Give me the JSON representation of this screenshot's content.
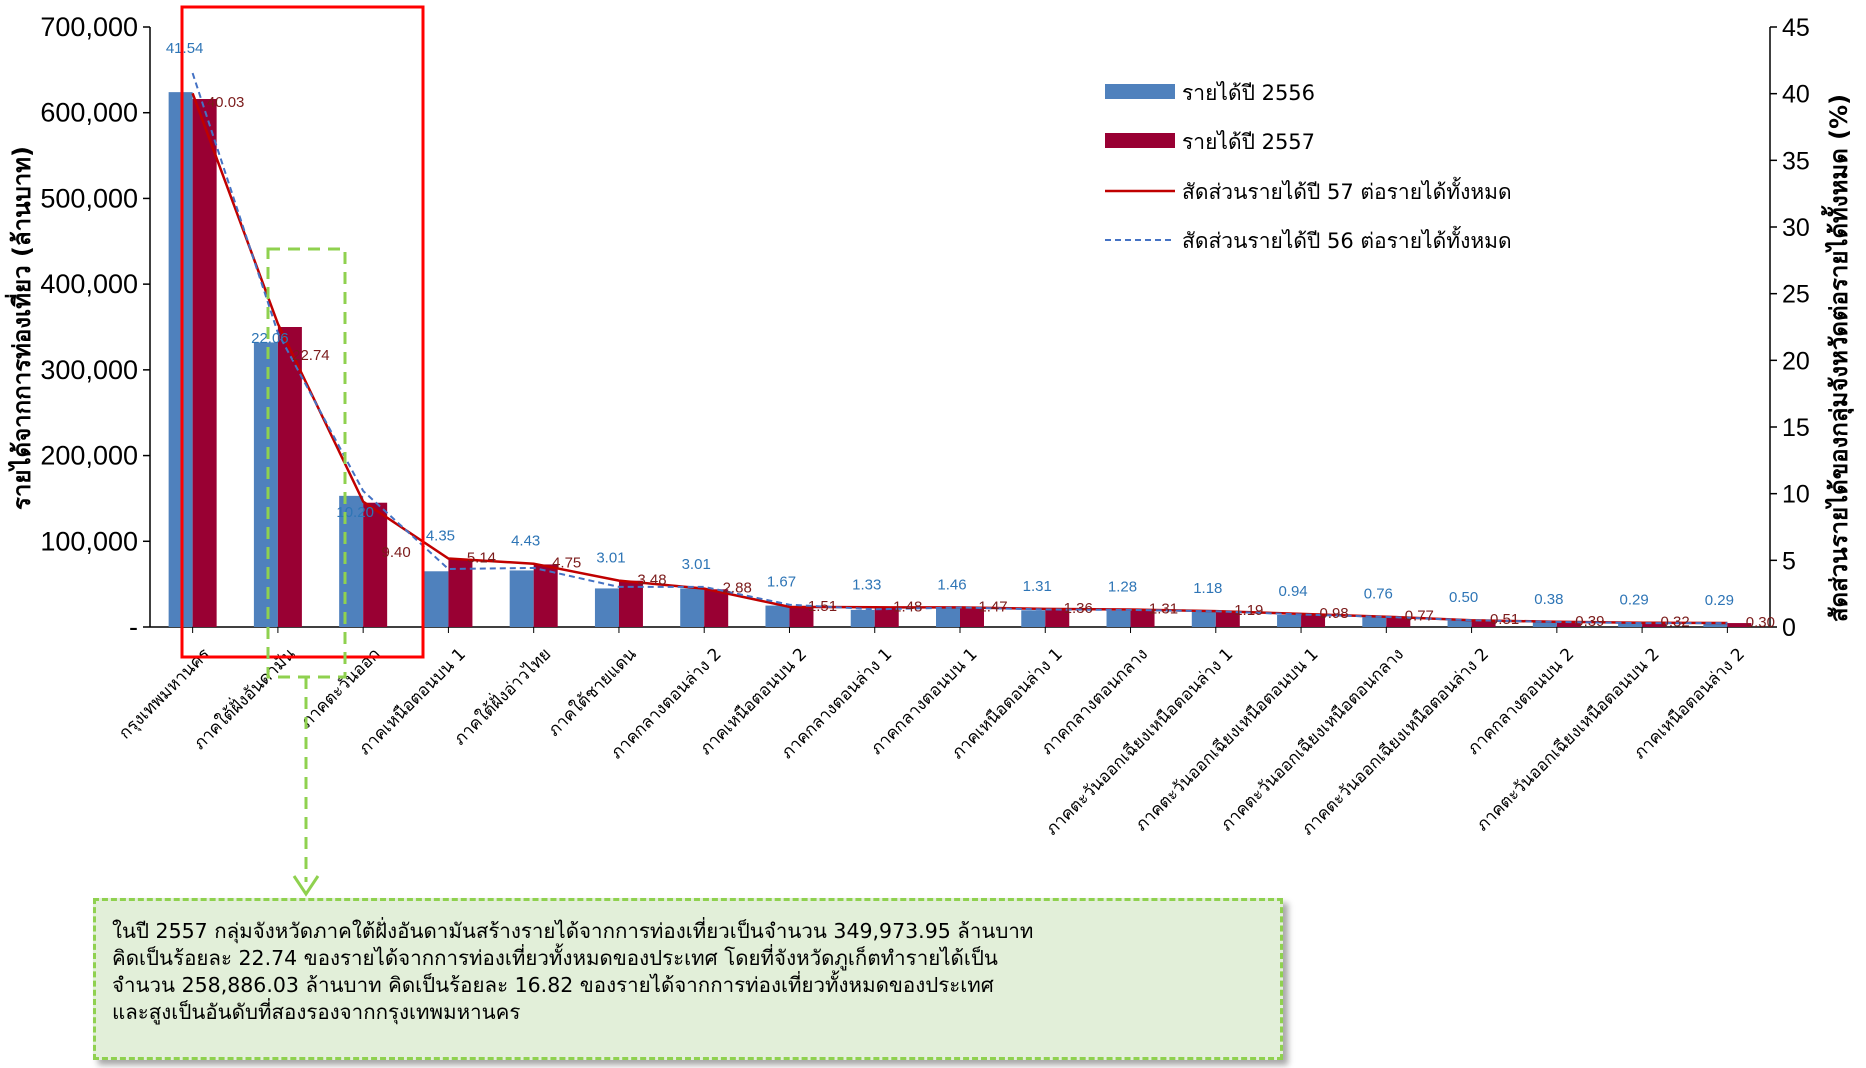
{
  "chart_data": {
    "type": "bar",
    "categories": [
      "กรุงเทพมหานคร",
      "ภาคใต้ฝั่งอันดามัน",
      "ภาคตะวันออก",
      "ภาคเหนือตอนบน 1",
      "ภาคใต้ฝั่งอ่าวไทย",
      "ภาคใต้ชายแดน",
      "ภาคกลางตอนล่าง 2",
      "ภาคเหนือตอนบน 2",
      "ภาคกลางตอนล่าง 1",
      "ภาคกลางตอนบน 1",
      "ภาคเหนือตอนล่าง 1",
      "ภาคกลางตอนกลาง",
      "ภาคตะวันออกเฉียงเหนือตอนล่าง 1",
      "ภาคตะวันออกเฉียงเหนือตอนบน 1",
      "ภาคตะวันออกเฉียงเหนือตอนกลาง",
      "ภาคตะวันออกเฉียงเหนือตอนล่าง 2",
      "ภาคกลางตอนบน 2",
      "ภาคตะวันออกเฉียงเหนือตอนบน 2",
      "ภาคเหนือตอนล่าง 2"
    ],
    "series": [
      {
        "name": "รายได้ปี 2556",
        "axis": "left",
        "values": [
          624000,
          332000,
          153000,
          65000,
          66000,
          45000,
          45000,
          25000,
          20000,
          22000,
          19500,
          19000,
          17500,
          14000,
          11500,
          7500,
          5500,
          4400,
          4400
        ]
      },
      {
        "name": "รายได้ปี 2557",
        "axis": "left",
        "values": [
          616000,
          350000,
          145000,
          79000,
          73000,
          54000,
          44000,
          23000,
          22700,
          22600,
          20800,
          20100,
          18300,
          15000,
          11800,
          7800,
          6000,
          4900,
          4600
        ]
      },
      {
        "name": "สัดส่วนรายได้ปี 57 ต่อรายได้ทั้งหมด",
        "axis": "right",
        "type": "line",
        "values": [
          40.03,
          22.74,
          9.4,
          5.14,
          4.75,
          3.48,
          2.88,
          1.51,
          1.48,
          1.47,
          1.36,
          1.31,
          1.19,
          0.98,
          0.77,
          0.51,
          0.39,
          0.32,
          0.3
        ]
      },
      {
        "name": "สัดส่วนรายได้ปี 56 ต่อรายได้ทั้งหมด",
        "axis": "right",
        "type": "line",
        "style": "dashed",
        "values": [
          41.54,
          22.06,
          10.2,
          4.35,
          4.43,
          3.01,
          3.01,
          1.67,
          1.33,
          1.46,
          1.31,
          1.28,
          1.18,
          0.94,
          0.76,
          0.5,
          0.38,
          0.29,
          0.29
        ]
      }
    ],
    "labels56": [
      "41.54",
      "22.06",
      "10.20",
      "4.35",
      "4.43",
      "3.01",
      "3.01",
      "1.67",
      "1.33",
      "1.46",
      "1.31",
      "1.28",
      "1.18",
      "0.94",
      "0.76",
      "0.50",
      "0.38",
      "0.29",
      "0.29"
    ],
    "labels57": [
      "40.03",
      "22.74",
      "9.40",
      "5.14",
      "4.75",
      "3.48",
      "2.88",
      "1.51",
      "1.48",
      "1.47",
      "1.36",
      "1.31",
      "1.19",
      "0.98",
      "0.77",
      "0.51",
      "0.39",
      "0.32",
      "0.30"
    ],
    "ylabel": "รายได้จากการท่องเที่ยว (ล้านบาท)",
    "y2label": "สัดส่วนรายได้ของกลุ่มจังหวัดต่อรายได้ทั้งหมด (%)",
    "yticks": [
      "-",
      "100,000",
      "200,000",
      "300,000",
      "400,000",
      "500,000",
      "600,000",
      "700,000"
    ],
    "y2ticks": [
      "0",
      "5",
      "10",
      "15",
      "20",
      "25",
      "30",
      "35",
      "40",
      "45"
    ],
    "ylim": [
      0,
      700000
    ],
    "y2lim": [
      0,
      45
    ],
    "legend_position": "top-right",
    "grid": false
  },
  "colors": {
    "bar2556": "#4F81BD",
    "bar2557": "#990033",
    "line57": "#C00000",
    "line56": "#4472C4",
    "highlight_box": "#FF0000",
    "dashed_box": "#8FD14F"
  },
  "note": {
    "lines": [
      "ในปี 2557  กลุ่มจังหวัดภาคใต้ฝั่งอันดามันสร้างรายได้จากการท่องเที่ยวเป็นจำนวน 349,973.95 ล้านบาท",
      "คิดเป็นร้อยละ 22.74 ของรายได้จากการท่องเที่ยวทั้งหมดของประเทศ  โดยที่จังหวัดภูเก็ตทำรายได้เป็น",
      "จำนวน 258,886.03 ล้านบาท คิดเป็นร้อยละ 16.82 ของรายได้จากการท่องเที่ยวทั้งหมดของประเทศ",
      "และสูงเป็นอันดับที่สองรองจากกรุงเทพมหานคร"
    ]
  }
}
